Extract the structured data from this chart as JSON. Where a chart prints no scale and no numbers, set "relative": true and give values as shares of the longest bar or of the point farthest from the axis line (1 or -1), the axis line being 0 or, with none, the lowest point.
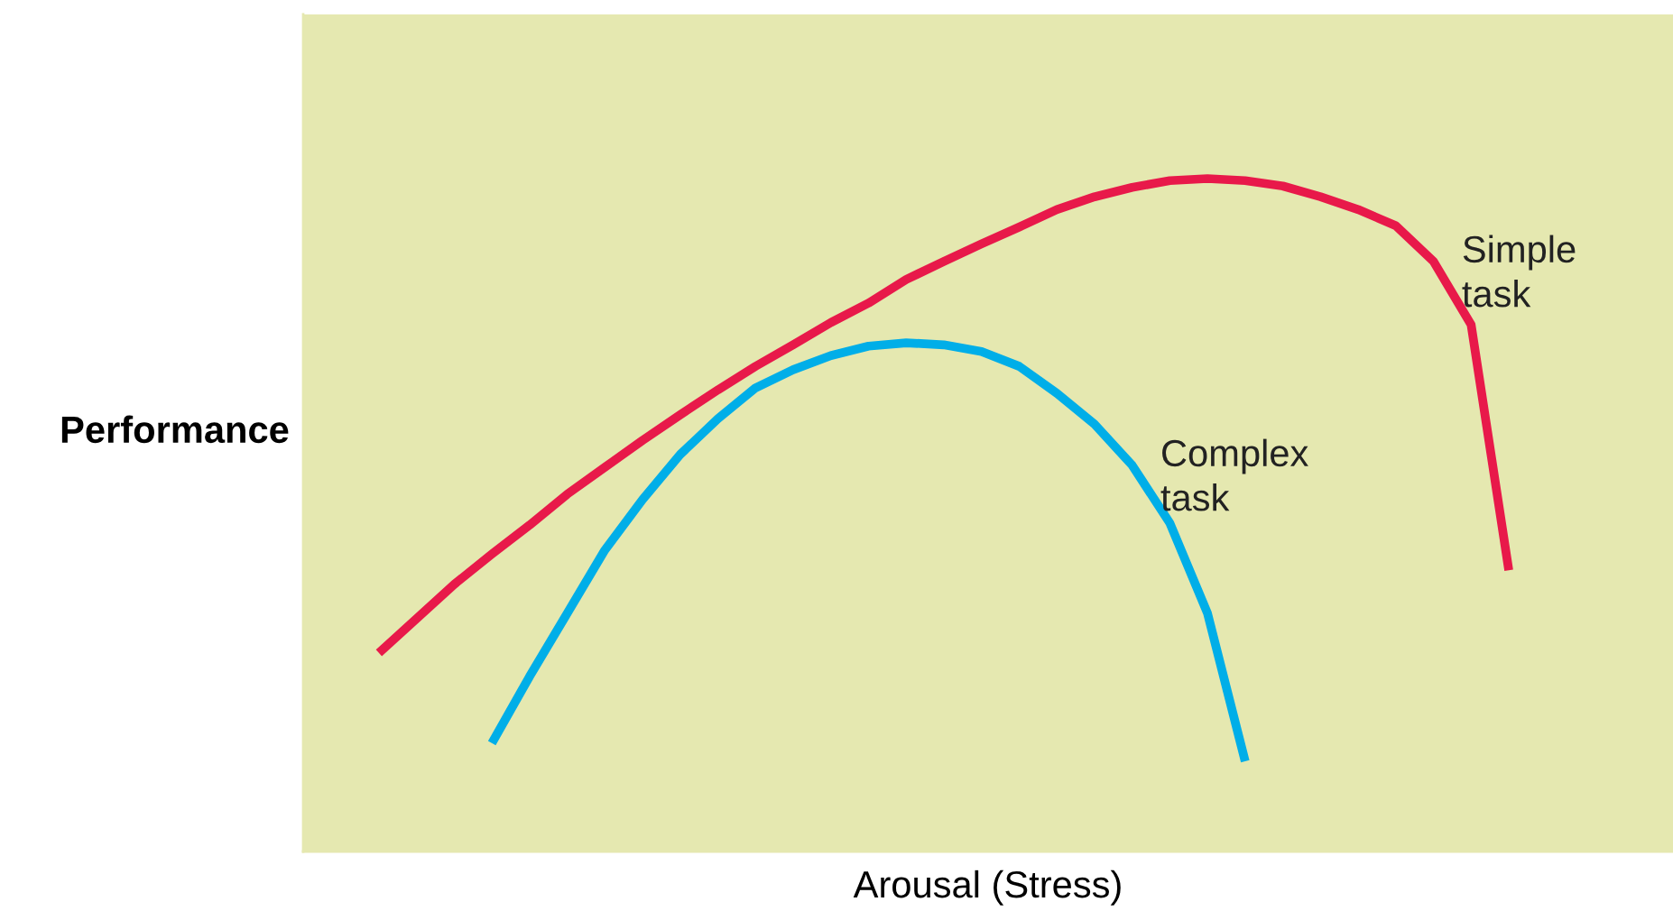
{
  "chart_data": {
    "type": "line",
    "relative": true,
    "xlabel": "Arousal (Stress)",
    "ylabel": "Performance",
    "marker": "none",
    "line_style": "solid",
    "categories": [
      null,
      null,
      null,
      null,
      null,
      null,
      null,
      null,
      null,
      null,
      null,
      null,
      null,
      null,
      null,
      null,
      null,
      null,
      null,
      null,
      null,
      null,
      null,
      null,
      null,
      null,
      null,
      null,
      null,
      null,
      null
    ],
    "series": [
      {
        "name": "Simple\ntask",
        "color": "#e8194a",
        "values": [
          0.295,
          0.346,
          0.397,
          0.442,
          0.485,
          0.531,
          0.571,
          0.611,
          0.649,
          0.686,
          0.721,
          0.753,
          0.786,
          0.815,
          0.85,
          0.877,
          0.903,
          0.928,
          0.954,
          0.973,
          0.987,
          0.997,
          1.0,
          0.997,
          0.989,
          0.973,
          0.954,
          0.93,
          0.877,
          0.783,
          0.418
        ]
      },
      {
        "name": "Complex\ntask",
        "color": "#00aee8",
        "values": [
          null,
          null,
          null,
          0.161,
          0.26,
          0.354,
          0.448,
          0.523,
          0.59,
          0.643,
          0.689,
          0.716,
          0.737,
          0.751,
          0.756,
          0.753,
          0.743,
          0.721,
          0.681,
          0.635,
          0.574,
          0.488,
          0.354,
          0.134,
          null,
          null,
          null,
          null,
          null,
          null,
          null
        ]
      }
    ]
  }
}
